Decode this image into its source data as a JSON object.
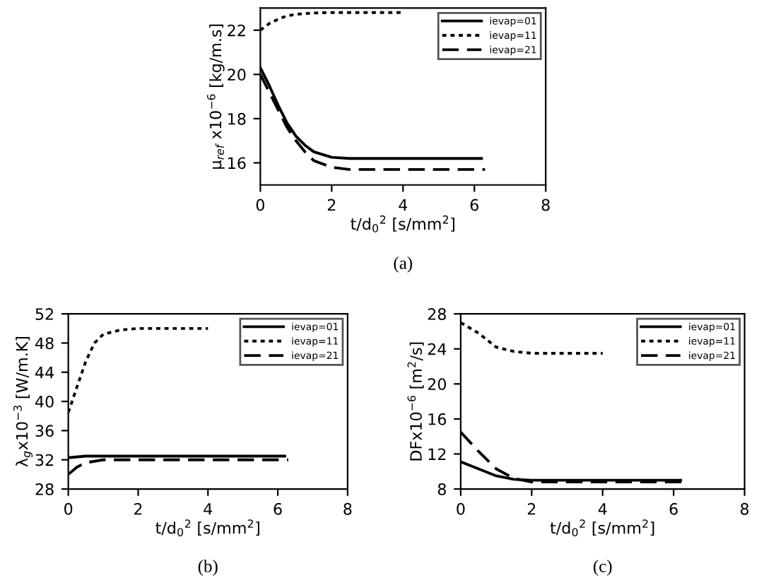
{
  "chart_data": [
    {
      "type": "line",
      "xlabel": "t/d$_{0}$$^{2}$ [s/mm$^{2}$]",
      "ylabel": "μ$_{ref}$ x10$^{−6}$ [kg/m.s]",
      "xlim": [
        0,
        8
      ],
      "xticks": [
        0,
        2,
        4,
        6,
        8
      ],
      "ylim": [
        15,
        23
      ],
      "yticks": [
        16,
        18,
        20,
        22
      ],
      "legend": "top right",
      "grid": false,
      "annotations": [
        "(a)"
      ],
      "series": [
        {
          "name": "ievap=01",
          "color": "#000000",
          "line_style": "solid",
          "x": [
            0,
            0.25,
            0.5,
            0.75,
            1.0,
            1.25,
            1.5,
            2.0,
            2.5,
            3.0,
            6.2
          ],
          "values": [
            20.3,
            19.5,
            18.6,
            17.8,
            17.2,
            16.8,
            16.5,
            16.25,
            16.2,
            16.2,
            16.2
          ]
        },
        {
          "name": "ievap=11",
          "color": "#000000",
          "line_style": "dotted",
          "x": [
            0,
            0.25,
            0.5,
            0.75,
            1.0,
            1.5,
            2.0,
            4.0
          ],
          "values": [
            22.0,
            22.3,
            22.5,
            22.65,
            22.72,
            22.78,
            22.8,
            22.8
          ]
        },
        {
          "name": "ievap=21",
          "color": "#000000",
          "line_style": "dashed",
          "x": [
            0,
            0.25,
            0.5,
            0.75,
            1.0,
            1.25,
            1.5,
            2.0,
            2.5,
            6.3
          ],
          "values": [
            20.0,
            19.2,
            18.4,
            17.6,
            17.0,
            16.5,
            16.1,
            15.8,
            15.7,
            15.7
          ]
        }
      ]
    },
    {
      "type": "line",
      "xlabel": "t/d$_{0}$$^{2}$ [s/mm$^{2}$]",
      "ylabel": "λ$_{g}$x10$^{−3}$ [W/m.K]",
      "xlim": [
        0,
        8
      ],
      "xticks": [
        0,
        2,
        4,
        6,
        8
      ],
      "ylim": [
        28,
        52
      ],
      "yticks": [
        28,
        32,
        36,
        40,
        44,
        48,
        52
      ],
      "legend": "top right",
      "grid": false,
      "annotations": [
        "(b)"
      ],
      "series": [
        {
          "name": "ievap=01",
          "color": "#000000",
          "line_style": "solid",
          "x": [
            0,
            0.5,
            1.0,
            6.2
          ],
          "values": [
            32.3,
            32.5,
            32.5,
            32.5
          ]
        },
        {
          "name": "ievap=11",
          "color": "#000000",
          "line_style": "dotted",
          "x": [
            0,
            0.25,
            0.5,
            0.75,
            1.0,
            1.5,
            2.0,
            4.0
          ],
          "values": [
            38.5,
            42,
            45.5,
            48,
            49.2,
            49.8,
            50,
            50
          ]
        },
        {
          "name": "ievap=21",
          "color": "#000000",
          "line_style": "dashed",
          "x": [
            0,
            0.25,
            0.5,
            1.0,
            6.3
          ],
          "values": [
            30.0,
            31.0,
            31.6,
            32.0,
            32.0
          ]
        }
      ]
    },
    {
      "type": "line",
      "xlabel": "t/d$_{0}$$^{2}$ [s/mm$^{2}$]",
      "ylabel": "DFx10$^{−6}$ [m$^{2}$/s]",
      "xlim": [
        0,
        8
      ],
      "xticks": [
        0,
        2,
        4,
        6,
        8
      ],
      "ylim": [
        8,
        28
      ],
      "yticks": [
        8,
        12,
        16,
        20,
        24,
        28
      ],
      "legend": "top right",
      "grid": false,
      "annotations": [
        "(c)"
      ],
      "series": [
        {
          "name": "ievap=01",
          "color": "#000000",
          "line_style": "solid",
          "x": [
            0,
            0.5,
            1.0,
            1.5,
            2.0,
            6.2
          ],
          "values": [
            11.1,
            10.3,
            9.5,
            9.1,
            9.0,
            9.0
          ]
        },
        {
          "name": "ievap=11",
          "color": "#000000",
          "line_style": "dotted",
          "x": [
            0,
            0.5,
            1.0,
            1.5,
            2.0,
            4.0
          ],
          "values": [
            27,
            25.8,
            24.2,
            23.7,
            23.5,
            23.5
          ]
        },
        {
          "name": "ievap=21",
          "color": "#000000",
          "line_style": "dashed",
          "x": [
            0,
            0.5,
            1.0,
            1.5,
            2.0,
            6.3
          ],
          "values": [
            14.5,
            12.3,
            10.3,
            9.2,
            8.8,
            8.8
          ]
        }
      ]
    }
  ]
}
